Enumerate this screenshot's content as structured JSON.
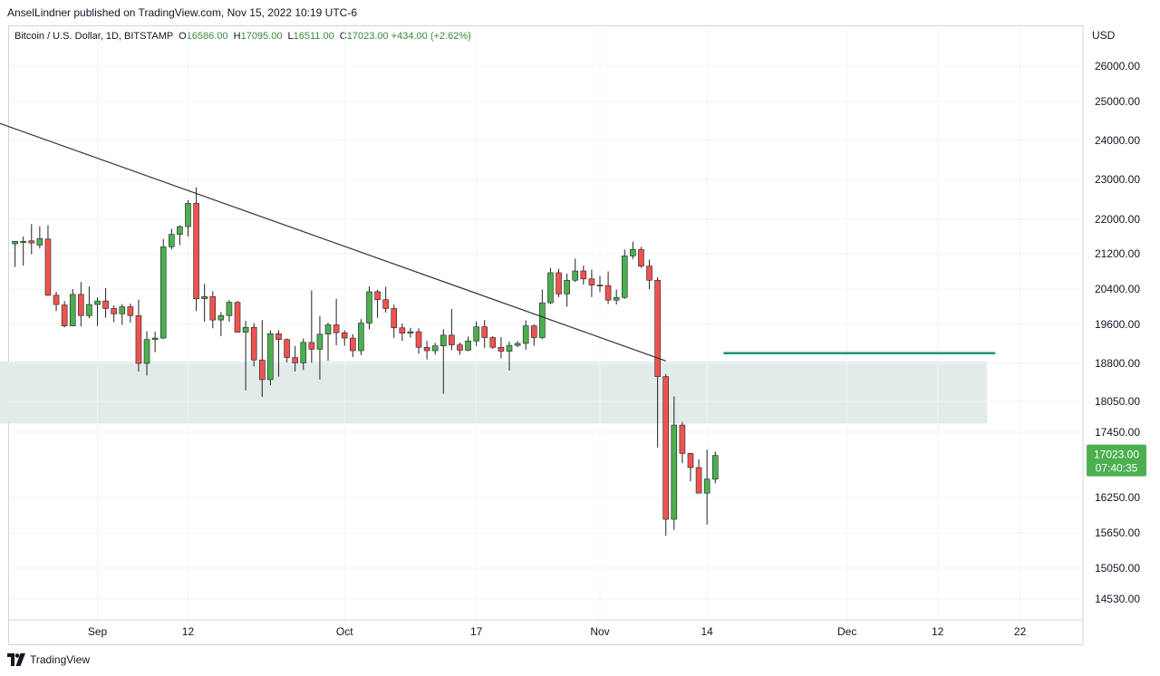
{
  "publisher": "AnselLindner published on TradingView.com, Nov 15, 2022 10:19 UTC-6",
  "legend": {
    "symbol": "Bitcoin / U.S. Dollar, 1D, BITSTAMP",
    "o_label": "O",
    "o": "16586.00",
    "h_label": "H",
    "h": "17095.00",
    "l_label": "L",
    "l": "16511.00",
    "c_label": "C",
    "c": "17023.00",
    "change": "+434.00 (+2.62%)"
  },
  "currency": "USD",
  "footer": {
    "brand": "TradingView"
  },
  "colors": {
    "up": "#4caf50",
    "down": "#ef5350",
    "wick": "#222222",
    "zone": "#e2ebea",
    "target": "#1e9678",
    "trend": "#333333",
    "price_tag": "#4caf50"
  },
  "price_tag": {
    "price": "17023.00",
    "countdown": "07:40:35"
  },
  "chart_data": {
    "type": "candlestick",
    "title": "Bitcoin / U.S. Dollar, 1D, BITSTAMP",
    "y_ticks": [
      "26000.00",
      "25000.00",
      "24000.00",
      "23000.00",
      "22000.00",
      "21200.00",
      "20400.00",
      "19600.00",
      "18800.00",
      "18050.00",
      "17450.00",
      "16250.00",
      "15650.00",
      "15050.00",
      "14530.00"
    ],
    "x_ticks": [
      {
        "label": "Sep",
        "date": "2022-09-01"
      },
      {
        "label": "12",
        "date": "2022-09-12"
      },
      {
        "label": "Oct",
        "date": "2022-10-01"
      },
      {
        "label": "17",
        "date": "2022-10-17"
      },
      {
        "label": "Nov",
        "date": "2022-11-01"
      },
      {
        "label": "14",
        "date": "2022-11-14"
      },
      {
        "label": "Dec",
        "date": "2022-12-01"
      },
      {
        "label": "12",
        "date": "2022-12-12"
      },
      {
        "label": "22",
        "date": "2022-12-22"
      }
    ],
    "candles": [
      {
        "d": "2022-08-22",
        "o": 21430,
        "h": 21490,
        "l": 20900,
        "c": 21490
      },
      {
        "d": "2022-08-23",
        "o": 21460,
        "h": 21600,
        "l": 20930,
        "c": 21490
      },
      {
        "d": "2022-08-24",
        "o": 21500,
        "h": 21890,
        "l": 21190,
        "c": 21450
      },
      {
        "d": "2022-08-25",
        "o": 21400,
        "h": 21840,
        "l": 21320,
        "c": 21550
      },
      {
        "d": "2022-08-26",
        "o": 21540,
        "h": 21860,
        "l": 20240,
        "c": 20260
      },
      {
        "d": "2022-08-27",
        "o": 20260,
        "h": 20340,
        "l": 19900,
        "c": 20050
      },
      {
        "d": "2022-08-28",
        "o": 20040,
        "h": 20130,
        "l": 19540,
        "c": 19570
      },
      {
        "d": "2022-08-29",
        "o": 19570,
        "h": 20400,
        "l": 19560,
        "c": 20280
      },
      {
        "d": "2022-08-30",
        "o": 20280,
        "h": 20560,
        "l": 19560,
        "c": 19800
      },
      {
        "d": "2022-08-31",
        "o": 19800,
        "h": 20460,
        "l": 19740,
        "c": 20050
      },
      {
        "d": "2022-09-01",
        "o": 20050,
        "h": 20210,
        "l": 19570,
        "c": 20130
      },
      {
        "d": "2022-09-02",
        "o": 20130,
        "h": 20420,
        "l": 19750,
        "c": 19960
      },
      {
        "d": "2022-09-03",
        "o": 19960,
        "h": 20030,
        "l": 19650,
        "c": 19840
      },
      {
        "d": "2022-09-04",
        "o": 19840,
        "h": 20060,
        "l": 19590,
        "c": 20000
      },
      {
        "d": "2022-09-05",
        "o": 20000,
        "h": 20070,
        "l": 19640,
        "c": 19800
      },
      {
        "d": "2022-09-06",
        "o": 19800,
        "h": 20160,
        "l": 18640,
        "c": 18800
      },
      {
        "d": "2022-09-07",
        "o": 18800,
        "h": 19460,
        "l": 18560,
        "c": 19290
      },
      {
        "d": "2022-09-08",
        "o": 19290,
        "h": 19450,
        "l": 19030,
        "c": 19320
      },
      {
        "d": "2022-09-09",
        "o": 19320,
        "h": 21540,
        "l": 19300,
        "c": 21360
      },
      {
        "d": "2022-09-10",
        "o": 21360,
        "h": 21780,
        "l": 21300,
        "c": 21650
      },
      {
        "d": "2022-09-11",
        "o": 21650,
        "h": 21860,
        "l": 21400,
        "c": 21830
      },
      {
        "d": "2022-09-12",
        "o": 21830,
        "h": 22480,
        "l": 21600,
        "c": 22400
      },
      {
        "d": "2022-09-13",
        "o": 22400,
        "h": 22800,
        "l": 19900,
        "c": 20180
      },
      {
        "d": "2022-09-14",
        "o": 20180,
        "h": 20520,
        "l": 19660,
        "c": 20230
      },
      {
        "d": "2022-09-15",
        "o": 20230,
        "h": 20350,
        "l": 19520,
        "c": 19700
      },
      {
        "d": "2022-09-16",
        "o": 19700,
        "h": 19880,
        "l": 19360,
        "c": 19800
      },
      {
        "d": "2022-09-17",
        "o": 19800,
        "h": 20150,
        "l": 19660,
        "c": 20100
      },
      {
        "d": "2022-09-18",
        "o": 20100,
        "h": 20130,
        "l": 19450,
        "c": 19440
      },
      {
        "d": "2022-09-19",
        "o": 19440,
        "h": 19680,
        "l": 18270,
        "c": 19540
      },
      {
        "d": "2022-09-20",
        "o": 19540,
        "h": 19630,
        "l": 18740,
        "c": 18870
      },
      {
        "d": "2022-09-21",
        "o": 18870,
        "h": 19700,
        "l": 18140,
        "c": 18480
      },
      {
        "d": "2022-09-22",
        "o": 18480,
        "h": 19480,
        "l": 18370,
        "c": 19410
      },
      {
        "d": "2022-09-23",
        "o": 19410,
        "h": 19480,
        "l": 18540,
        "c": 19290
      },
      {
        "d": "2022-09-24",
        "o": 19290,
        "h": 19310,
        "l": 18820,
        "c": 18920
      },
      {
        "d": "2022-09-25",
        "o": 18920,
        "h": 19160,
        "l": 18640,
        "c": 18810
      },
      {
        "d": "2022-09-26",
        "o": 18810,
        "h": 19310,
        "l": 18670,
        "c": 19230
      },
      {
        "d": "2022-09-27",
        "o": 19230,
        "h": 20370,
        "l": 18810,
        "c": 19090
      },
      {
        "d": "2022-09-28",
        "o": 19090,
        "h": 19790,
        "l": 18480,
        "c": 19400
      },
      {
        "d": "2022-09-29",
        "o": 19400,
        "h": 19640,
        "l": 18850,
        "c": 19590
      },
      {
        "d": "2022-09-30",
        "o": 19590,
        "h": 20180,
        "l": 19170,
        "c": 19430
      },
      {
        "d": "2022-10-01",
        "o": 19430,
        "h": 19480,
        "l": 19160,
        "c": 19320
      },
      {
        "d": "2022-10-02",
        "o": 19320,
        "h": 19400,
        "l": 18930,
        "c": 19060
      },
      {
        "d": "2022-10-03",
        "o": 19060,
        "h": 19720,
        "l": 18970,
        "c": 19630
      },
      {
        "d": "2022-10-04",
        "o": 19630,
        "h": 20460,
        "l": 19500,
        "c": 20340
      },
      {
        "d": "2022-10-05",
        "o": 20340,
        "h": 20380,
        "l": 19750,
        "c": 20160
      },
      {
        "d": "2022-10-06",
        "o": 20160,
        "h": 20450,
        "l": 19870,
        "c": 19960
      },
      {
        "d": "2022-10-07",
        "o": 19960,
        "h": 20050,
        "l": 19320,
        "c": 19530
      },
      {
        "d": "2022-10-08",
        "o": 19530,
        "h": 19620,
        "l": 19260,
        "c": 19420
      },
      {
        "d": "2022-10-09",
        "o": 19420,
        "h": 19530,
        "l": 19330,
        "c": 19450
      },
      {
        "d": "2022-10-10",
        "o": 19450,
        "h": 19520,
        "l": 19000,
        "c": 19130
      },
      {
        "d": "2022-10-11",
        "o": 19130,
        "h": 19260,
        "l": 18880,
        "c": 19060
      },
      {
        "d": "2022-10-12",
        "o": 19060,
        "h": 19220,
        "l": 18980,
        "c": 19160
      },
      {
        "d": "2022-10-13",
        "o": 19160,
        "h": 19500,
        "l": 18200,
        "c": 19380
      },
      {
        "d": "2022-10-14",
        "o": 19380,
        "h": 19950,
        "l": 19070,
        "c": 19180
      },
      {
        "d": "2022-10-15",
        "o": 19180,
        "h": 19230,
        "l": 18980,
        "c": 19070
      },
      {
        "d": "2022-10-16",
        "o": 19070,
        "h": 19350,
        "l": 19050,
        "c": 19260
      },
      {
        "d": "2022-10-17",
        "o": 19260,
        "h": 19670,
        "l": 19160,
        "c": 19550
      },
      {
        "d": "2022-10-18",
        "o": 19550,
        "h": 19700,
        "l": 19120,
        "c": 19330
      },
      {
        "d": "2022-10-19",
        "o": 19330,
        "h": 19360,
        "l": 19100,
        "c": 19130
      },
      {
        "d": "2022-10-20",
        "o": 19130,
        "h": 19340,
        "l": 18900,
        "c": 19050
      },
      {
        "d": "2022-10-21",
        "o": 19050,
        "h": 19250,
        "l": 18660,
        "c": 19170
      },
      {
        "d": "2022-10-22",
        "o": 19170,
        "h": 19260,
        "l": 19130,
        "c": 19210
      },
      {
        "d": "2022-10-23",
        "o": 19210,
        "h": 19690,
        "l": 19080,
        "c": 19570
      },
      {
        "d": "2022-10-24",
        "o": 19570,
        "h": 19600,
        "l": 19160,
        "c": 19330
      },
      {
        "d": "2022-10-25",
        "o": 19330,
        "h": 20390,
        "l": 19300,
        "c": 20090
      },
      {
        "d": "2022-10-26",
        "o": 20090,
        "h": 20880,
        "l": 20060,
        "c": 20770
      },
      {
        "d": "2022-10-27",
        "o": 20770,
        "h": 20860,
        "l": 20220,
        "c": 20290
      },
      {
        "d": "2022-10-28",
        "o": 20290,
        "h": 20750,
        "l": 20000,
        "c": 20600
      },
      {
        "d": "2022-10-29",
        "o": 20600,
        "h": 21090,
        "l": 20560,
        "c": 20810
      },
      {
        "d": "2022-10-30",
        "o": 20810,
        "h": 20930,
        "l": 20500,
        "c": 20630
      },
      {
        "d": "2022-10-31",
        "o": 20630,
        "h": 20840,
        "l": 20220,
        "c": 20490
      },
      {
        "d": "2022-11-01",
        "o": 20490,
        "h": 20700,
        "l": 20330,
        "c": 20480
      },
      {
        "d": "2022-11-02",
        "o": 20480,
        "h": 20800,
        "l": 20060,
        "c": 20150
      },
      {
        "d": "2022-11-03",
        "o": 20150,
        "h": 20390,
        "l": 20050,
        "c": 20210
      },
      {
        "d": "2022-11-04",
        "o": 20210,
        "h": 21300,
        "l": 20180,
        "c": 21150
      },
      {
        "d": "2022-11-05",
        "o": 21150,
        "h": 21480,
        "l": 21080,
        "c": 21300
      },
      {
        "d": "2022-11-06",
        "o": 21300,
        "h": 21360,
        "l": 20880,
        "c": 20920
      },
      {
        "d": "2022-11-07",
        "o": 20920,
        "h": 21070,
        "l": 20400,
        "c": 20600
      },
      {
        "d": "2022-11-08",
        "o": 20600,
        "h": 20670,
        "l": 17170,
        "c": 18540
      },
      {
        "d": "2022-11-09",
        "o": 18540,
        "h": 18590,
        "l": 15600,
        "c": 15880
      },
      {
        "d": "2022-11-10",
        "o": 15880,
        "h": 18150,
        "l": 15700,
        "c": 17590
      },
      {
        "d": "2022-11-11",
        "o": 17590,
        "h": 17650,
        "l": 16880,
        "c": 17060
      },
      {
        "d": "2022-11-12",
        "o": 17060,
        "h": 17070,
        "l": 16550,
        "c": 16800
      },
      {
        "d": "2022-11-13",
        "o": 16800,
        "h": 16950,
        "l": 16360,
        "c": 16330
      },
      {
        "d": "2022-11-14",
        "o": 16330,
        "h": 17130,
        "l": 15790,
        "c": 16590
      },
      {
        "d": "2022-11-15",
        "o": 16586,
        "h": 17095,
        "l": 16511,
        "c": 17023
      }
    ],
    "trendline": [
      {
        "d": "2022-08-18",
        "v": 24600
      },
      {
        "d": "2022-11-09",
        "v": 18850
      }
    ],
    "support_zone": {
      "from_date": "2022-08-18",
      "to_date": "2022-12-18",
      "low": 17620,
      "high": 18840
    },
    "target_line": {
      "from_date": "2022-11-16",
      "to_date": "2022-12-19",
      "v": 19010
    }
  }
}
